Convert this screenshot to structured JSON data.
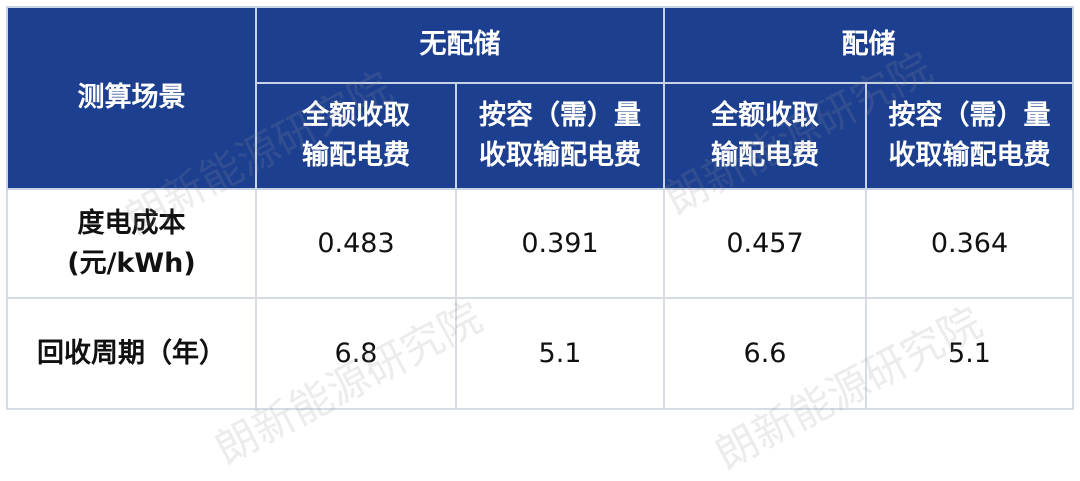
{
  "table": {
    "corner": "测算场景",
    "groups": [
      "无配储",
      "配储"
    ],
    "subheaders": [
      [
        "全额收取",
        "输配电费"
      ],
      [
        "按容（需）量",
        "收取输配电费"
      ],
      [
        "全额收取",
        "输配电费"
      ],
      [
        "按容（需）量",
        "收取输配电费"
      ]
    ],
    "rows": [
      {
        "label": [
          "度电成本",
          "(元/kWh)"
        ],
        "values": [
          "0.483",
          "0.391",
          "0.457",
          "0.364"
        ]
      },
      {
        "label": [
          "回收周期（年）"
        ],
        "values": [
          "6.8",
          "5.1",
          "6.6",
          "5.1"
        ]
      }
    ]
  },
  "watermark": "朗新能源研究院",
  "colors": {
    "header_bg": "#1c3f8f",
    "border": "#d6dbe4"
  }
}
